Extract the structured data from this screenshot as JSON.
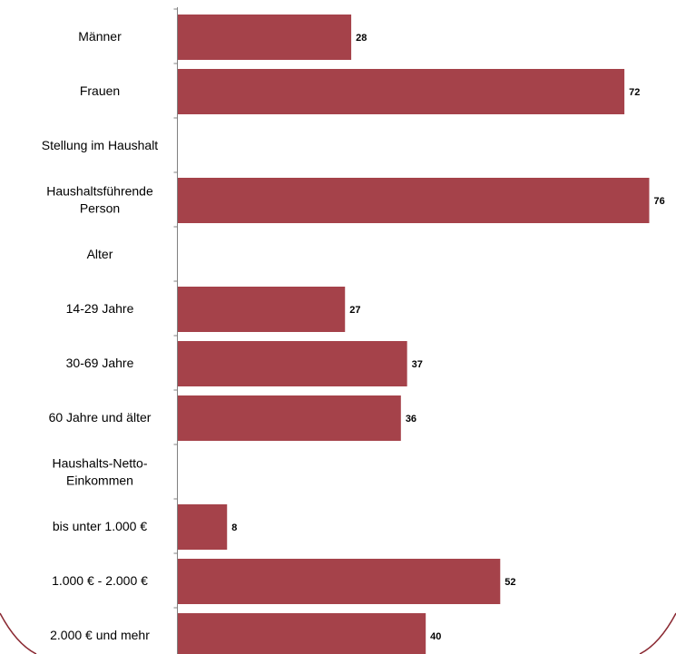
{
  "colors": {
    "bar": "#a5424a",
    "axis": "#808080",
    "frame": "#8b2a33"
  },
  "chart_data": {
    "type": "bar",
    "orientation": "horizontal",
    "categories": [
      "Männer",
      "Frauen",
      "Stellung im Haushalt",
      "Haushaltsführende Person",
      "Alter",
      "14-29 Jahre",
      "30-69 Jahre",
      "60 Jahre und älter",
      "Haushalts-Netto-Einkommen",
      "bis unter 1.000 €",
      "1.000 € - 2.000 €",
      "2.000 € und mehr"
    ],
    "category_lines": [
      [
        "Männer"
      ],
      [
        "Frauen"
      ],
      [
        "Stellung im Haushalt"
      ],
      [
        "Haushaltsführende",
        "Person"
      ],
      [
        "Alter"
      ],
      [
        "14-29 Jahre"
      ],
      [
        "30-69 Jahre"
      ],
      [
        "60 Jahre und älter"
      ],
      [
        "Haushalts-Netto-",
        "Einkommen"
      ],
      [
        "bis unter 1.000 €"
      ],
      [
        "1.000 € - 2.000 €"
      ],
      [
        "2.000 € und mehr"
      ]
    ],
    "values": [
      28,
      72,
      null,
      76,
      null,
      27,
      37,
      36,
      null,
      8,
      52,
      40
    ],
    "xlim": [
      0,
      76
    ],
    "data_labels": true,
    "grid": false,
    "legend": "none"
  }
}
